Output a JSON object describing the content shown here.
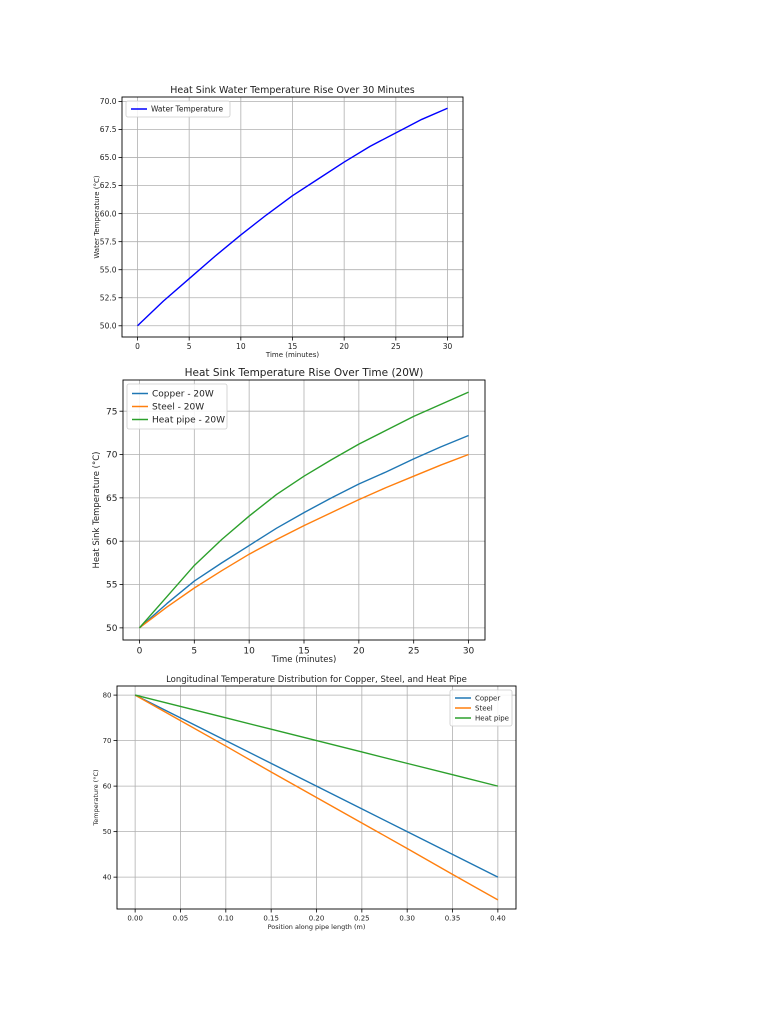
{
  "chart_data": [
    {
      "type": "line",
      "title": "Heat Sink Water Temperature Rise Over 30 Minutes",
      "xlabel": "Time (minutes)",
      "ylabel": "Water Temperature (°C)",
      "xlim": [
        -1.5,
        31.5
      ],
      "ylim": [
        49.0,
        70.4
      ],
      "xticks": [
        0,
        5,
        10,
        15,
        20,
        25,
        30
      ],
      "xtick_labels": [
        "0",
        "5",
        "10",
        "15",
        "20",
        "25",
        "30"
      ],
      "yticks": [
        50,
        52.5,
        55,
        57.5,
        60,
        62.5,
        65,
        67.5,
        70
      ],
      "ytick_labels": [
        "50.0",
        "52.5",
        "55.0",
        "57.5",
        "60.0",
        "62.5",
        "65.0",
        "67.5",
        "70.0"
      ],
      "grid": true,
      "legend_position": "upper-left",
      "series": [
        {
          "name": "Water Temperature",
          "color": "#0000ff",
          "x": [
            0,
            2.5,
            5,
            7.5,
            10,
            12.5,
            15,
            17.5,
            20,
            22.5,
            25,
            27.5,
            30
          ],
          "y": [
            50.0,
            52.2,
            54.2,
            56.2,
            58.1,
            59.9,
            61.6,
            63.1,
            64.6,
            66.0,
            67.2,
            68.4,
            69.4
          ]
        }
      ]
    },
    {
      "type": "line",
      "title": "Heat Sink Temperature Rise Over Time (20W)",
      "xlabel": "Time (minutes)",
      "ylabel": "Heat Sink Temperature (°C)",
      "xlim": [
        -1.5,
        31.5
      ],
      "ylim": [
        48.6,
        78.6
      ],
      "xticks": [
        0,
        5,
        10,
        15,
        20,
        25,
        30
      ],
      "xtick_labels": [
        "0",
        "5",
        "10",
        "15",
        "20",
        "25",
        "30"
      ],
      "yticks": [
        50,
        55,
        60,
        65,
        70,
        75
      ],
      "ytick_labels": [
        "50",
        "55",
        "60",
        "65",
        "70",
        "75"
      ],
      "grid": true,
      "legend_position": "upper-left",
      "series": [
        {
          "name": "Copper - 20W",
          "color": "#1f77b4",
          "x": [
            0,
            2.5,
            5,
            7.5,
            10,
            12.5,
            15,
            17.5,
            20,
            22.5,
            25,
            27.5,
            30
          ],
          "y": [
            50.0,
            52.8,
            55.4,
            57.5,
            59.5,
            61.5,
            63.3,
            65.0,
            66.6,
            68.0,
            69.5,
            70.9,
            72.2
          ]
        },
        {
          "name": "Steel - 20W",
          "color": "#ff7f0e",
          "x": [
            0,
            2.5,
            5,
            7.5,
            10,
            12.5,
            15,
            17.5,
            20,
            22.5,
            25,
            27.5,
            30
          ],
          "y": [
            50.0,
            52.4,
            54.6,
            56.6,
            58.5,
            60.2,
            61.8,
            63.3,
            64.8,
            66.2,
            67.5,
            68.8,
            70.0
          ]
        },
        {
          "name": "Heat pipe - 20W",
          "color": "#2ca02c",
          "x": [
            0,
            2.5,
            5,
            7.5,
            10,
            12.5,
            15,
            17.5,
            20,
            22.5,
            25,
            27.5,
            30
          ],
          "y": [
            50.0,
            53.6,
            57.2,
            60.2,
            62.9,
            65.4,
            67.5,
            69.4,
            71.2,
            72.8,
            74.4,
            75.8,
            77.2
          ]
        }
      ]
    },
    {
      "type": "line",
      "title": "Longitudinal Temperature Distribution for Copper, Steel, and Heat Pipe",
      "xlabel": "Position along pipe length (m)",
      "ylabel": "Temperature (°C)",
      "xlim": [
        -0.02,
        0.42
      ],
      "ylim": [
        33.0,
        82.0
      ],
      "xticks": [
        0,
        0.05,
        0.1,
        0.15,
        0.2,
        0.25,
        0.3,
        0.35,
        0.4
      ],
      "xtick_labels": [
        "0.00",
        "0.05",
        "0.10",
        "0.15",
        "0.20",
        "0.25",
        "0.30",
        "0.35",
        "0.40"
      ],
      "yticks": [
        40,
        50,
        60,
        70,
        80
      ],
      "ytick_labels": [
        "40",
        "50",
        "60",
        "70",
        "80"
      ],
      "grid": true,
      "legend_position": "upper-right",
      "series": [
        {
          "name": "Copper",
          "color": "#1f77b4",
          "x": [
            0,
            0.05,
            0.1,
            0.15,
            0.2,
            0.25,
            0.3,
            0.35,
            0.4
          ],
          "y": [
            80,
            75,
            70,
            65,
            60,
            55,
            50,
            45,
            40
          ]
        },
        {
          "name": "Steel",
          "color": "#ff7f0e",
          "x": [
            0,
            0.05,
            0.1,
            0.15,
            0.2,
            0.25,
            0.3,
            0.35,
            0.4
          ],
          "y": [
            80,
            74.4,
            68.8,
            63.1,
            57.5,
            51.9,
            46.3,
            40.6,
            35
          ]
        },
        {
          "name": "Heat pipe",
          "color": "#2ca02c",
          "x": [
            0,
            0.05,
            0.1,
            0.15,
            0.2,
            0.25,
            0.3,
            0.35,
            0.4
          ],
          "y": [
            80,
            77.5,
            75,
            72.5,
            70,
            67.5,
            65,
            62.5,
            60
          ]
        }
      ]
    }
  ]
}
